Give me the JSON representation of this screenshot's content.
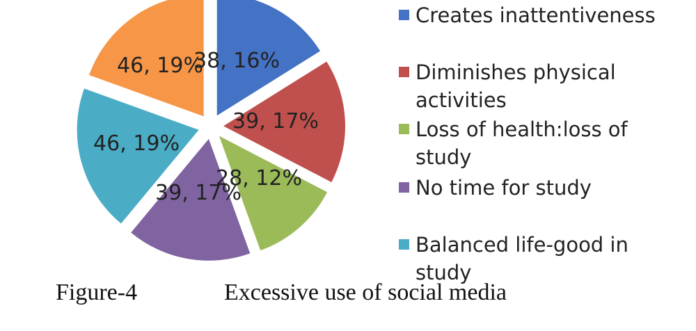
{
  "chart_data": {
    "type": "pie",
    "slices": [
      {
        "name": "Creates inattentiveness",
        "value": 38,
        "percent": "16%",
        "label": "38, 16%",
        "color": "#4472C4"
      },
      {
        "name": "Diminishes physical activities",
        "value": 39,
        "percent": "17%",
        "label": "39, 17%",
        "color": "#C0504D"
      },
      {
        "name": "Loss of health:loss of study",
        "value": 28,
        "percent": "12%",
        "label": "28, 12%",
        "color": "#9BBB59"
      },
      {
        "name": "No time for study",
        "value": 39,
        "percent": "17%",
        "label": "39, 17%",
        "color": "#8064A2"
      },
      {
        "name": "Balanced life-good in study",
        "value": 46,
        "percent": "19%",
        "label": "46, 19%",
        "color": "#4BACC6"
      },
      {
        "name": "",
        "value": 46,
        "percent": "19%",
        "label": "46, 19%",
        "color": "#F79646"
      }
    ],
    "legend": {
      "position": "right",
      "items": [
        {
          "name": "Creates inattentiveness",
          "color": "#4472C4"
        },
        {
          "name": "Diminishes physical activities",
          "color": "#C0504D"
        },
        {
          "name": "Loss of health:loss of study",
          "color": "#9BBB59"
        },
        {
          "name": "No time for study",
          "color": "#8064A2"
        },
        {
          "name": "Balanced life-good in study",
          "color": "#4BACC6"
        }
      ]
    }
  },
  "caption": {
    "figure_label": "Figure-4",
    "title": "Excessive use of social media"
  }
}
